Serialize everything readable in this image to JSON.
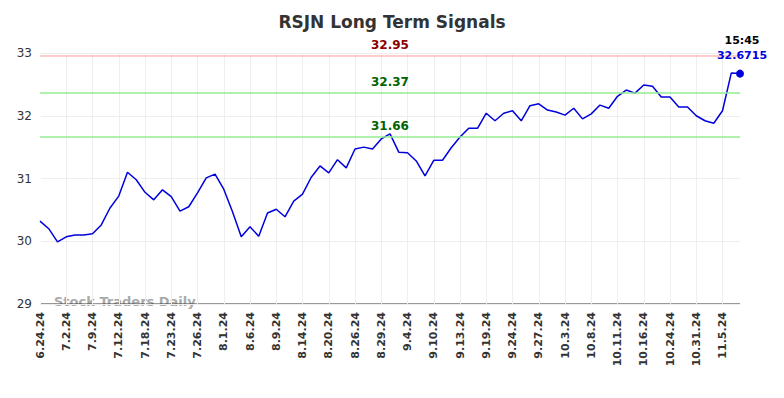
{
  "chart_data": {
    "type": "line",
    "title": "RSJN Long Term Signals",
    "categories": [
      "6.24.24",
      null,
      null,
      "7.2.24",
      null,
      null,
      "7.9.24",
      null,
      null,
      "7.12.24",
      null,
      null,
      "7.18.24",
      null,
      null,
      "7.23.24",
      null,
      null,
      "7.26.24",
      null,
      null,
      "8.1.24",
      null,
      null,
      "8.6.24",
      null,
      null,
      "8.9.24",
      null,
      null,
      "8.14.24",
      null,
      null,
      "8.20.24",
      null,
      null,
      "8.26.24",
      null,
      null,
      "8.29.24",
      null,
      null,
      "9.4.24",
      null,
      null,
      "9.10.24",
      null,
      null,
      "9.13.24",
      null,
      null,
      "9.19.24",
      null,
      null,
      "9.24.24",
      null,
      null,
      "9.27.24",
      null,
      null,
      "10.3.24",
      null,
      null,
      "10.8.24",
      null,
      null,
      "10.11.24",
      null,
      null,
      "10.16.24",
      null,
      null,
      "10.24.24",
      null,
      null,
      "10.31.24",
      null,
      null,
      "11.5.24",
      null,
      null
    ],
    "values": [
      30.32,
      30.2,
      29.99,
      30.07,
      30.1,
      30.1,
      30.12,
      30.26,
      30.53,
      30.72,
      31.1,
      30.98,
      30.78,
      30.66,
      30.82,
      30.71,
      30.48,
      30.55,
      30.77,
      31.01,
      31.07,
      30.83,
      30.47,
      30.07,
      30.23,
      30.08,
      30.45,
      30.51,
      30.39,
      30.64,
      30.75,
      31.02,
      31.2,
      31.09,
      31.3,
      31.17,
      31.47,
      31.5,
      31.47,
      31.63,
      31.71,
      31.42,
      31.41,
      31.28,
      31.04,
      31.29,
      31.29,
      31.49,
      31.66,
      31.8,
      31.8,
      32.04,
      31.92,
      32.04,
      32.08,
      31.92,
      32.16,
      32.19,
      32.09,
      32.06,
      32.01,
      32.12,
      31.95,
      32.03,
      32.17,
      32.12,
      32.31,
      32.41,
      32.36,
      32.49,
      32.47,
      32.3,
      32.3,
      32.14,
      32.14,
      32.0,
      31.92,
      31.88,
      32.08,
      32.68,
      32.6715
    ],
    "color": "#0000dd",
    "ylim": [
      29,
      33
    ],
    "yticks": [
      29,
      30,
      31,
      32,
      33
    ],
    "grid": true,
    "signals": [
      {
        "value": 32.95,
        "color": "#ffbbbb",
        "label_color": "#8b0000"
      },
      {
        "value": 32.37,
        "color": "#90ee90",
        "label_color": "#006400"
      },
      {
        "value": 31.66,
        "color": "#90ee90",
        "label_color": "#006400"
      }
    ],
    "last_point": {
      "time": "15:45",
      "value": 32.6715
    },
    "watermark": "Stock Traders Daily"
  }
}
